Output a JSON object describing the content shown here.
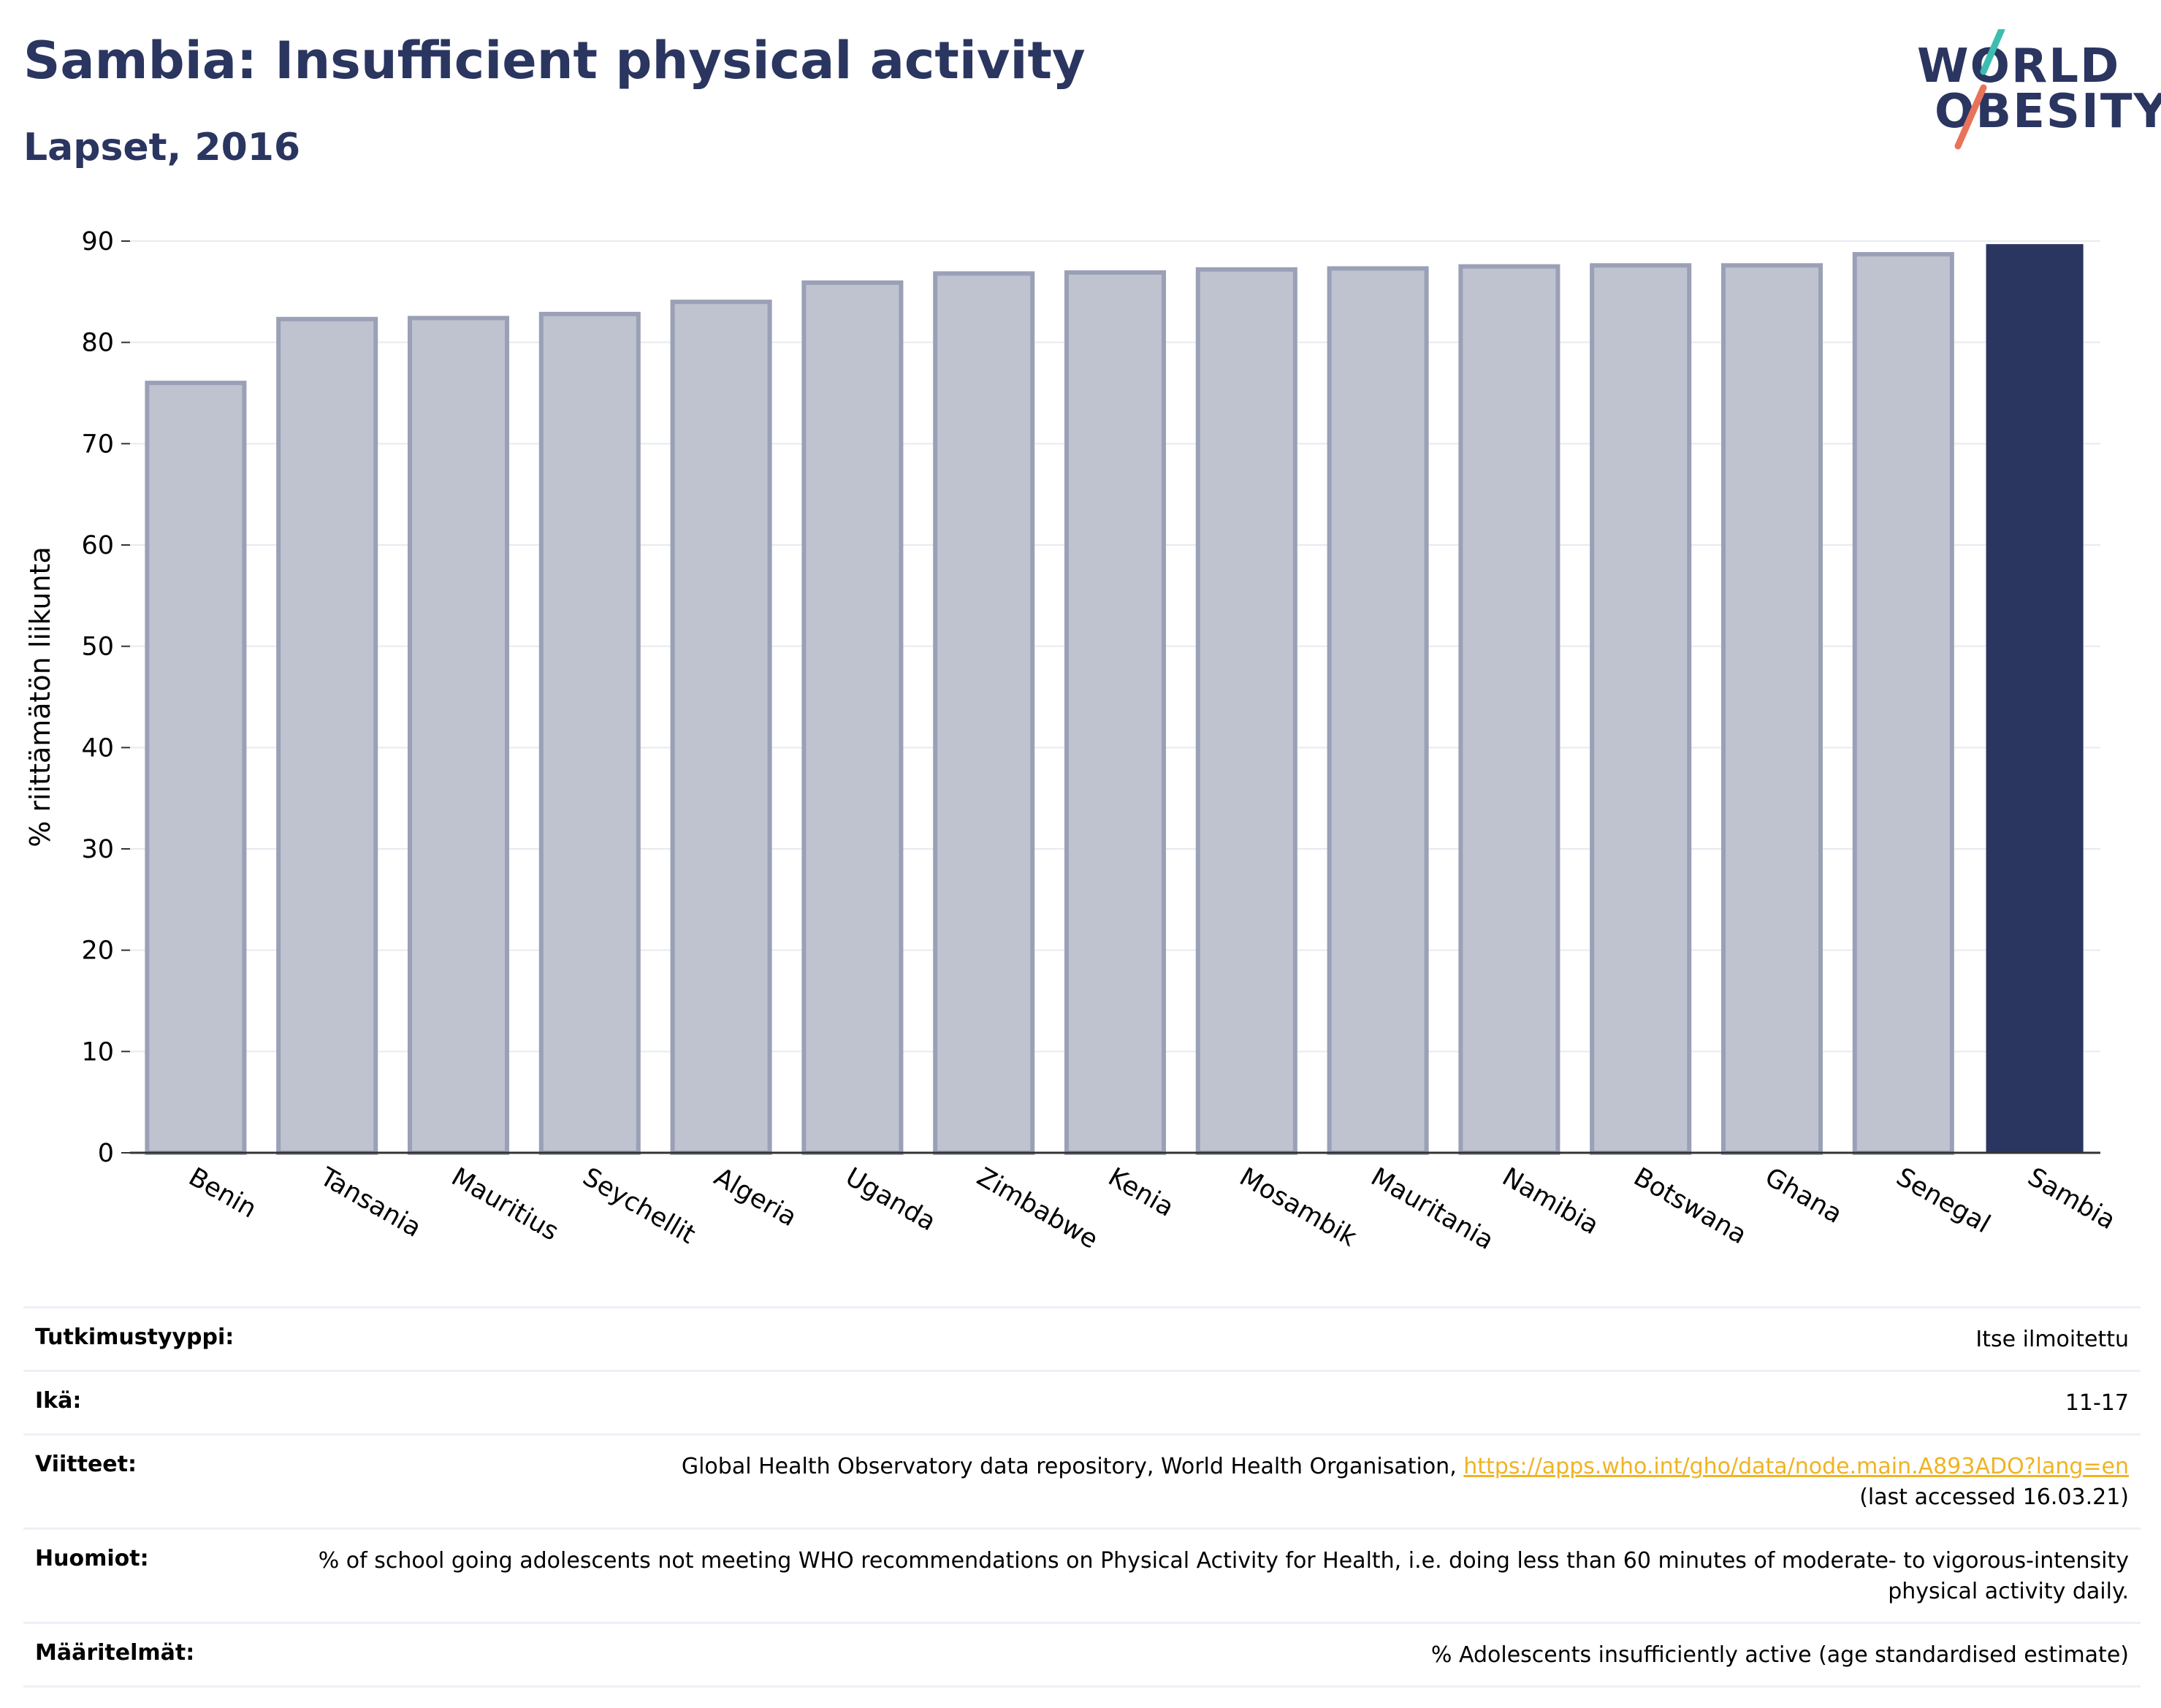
{
  "header": {
    "title": "Sambia: Insufficient physical activity",
    "subtitle": "Lapset, 2016"
  },
  "logo": {
    "line1": "WORLD",
    "line2": "OBESITY",
    "text_color": "#2a3560",
    "slash_colors": [
      "#3dbdb0",
      "#e8735a"
    ]
  },
  "chart_data": {
    "type": "bar",
    "categories": [
      "Benin",
      "Tansania",
      "Mauritius",
      "Seychellit",
      "Algeria",
      "Uganda",
      "Zimbabwe",
      "Kenia",
      "Mosambik",
      "Mauritania",
      "Namibia",
      "Botswana",
      "Ghana",
      "Senegal",
      "Sambia"
    ],
    "values": [
      76.0,
      82.3,
      82.4,
      82.8,
      84.0,
      85.9,
      86.8,
      86.9,
      87.2,
      87.3,
      87.5,
      87.6,
      87.6,
      88.7,
      89.7
    ],
    "highlight": "Sambia",
    "ylabel": "% riittämätön liikunta",
    "xlabel": "",
    "ylim": [
      0,
      90
    ],
    "yticks": [
      0,
      10,
      20,
      30,
      40,
      50,
      60,
      70,
      80,
      90
    ],
    "grid": true,
    "colors": {
      "bar": "#bfc3d0",
      "bar_edge": "#9aa0b6",
      "highlight": "#2a3560",
      "grid": "#e8eaf0"
    }
  },
  "meta": {
    "rows": [
      {
        "label": "Tutkimustyyppi:",
        "value": "Itse ilmoitettu"
      },
      {
        "label": "Ikä:",
        "value": "11-17"
      },
      {
        "label": "Viitteet:",
        "value": "Global Health Observatory data repository, World Health Organisation, ",
        "link": "https://apps.who.int/gho/data/node.main.A893ADO?lang=en",
        "value_after": "(last accessed 16.03.21)"
      },
      {
        "label": "Huomiot:",
        "value": "% of school going adolescents not meeting WHO recommendations on Physical Activity for Health, i.e. doing less than 60 minutes of moderate- to vigorous-intensity physical activity daily."
      },
      {
        "label": "Määritelmät:",
        "value": "% Adolescents insufficiently active (age standardised estimate)"
      }
    ],
    "link_color": "#f0b323"
  }
}
